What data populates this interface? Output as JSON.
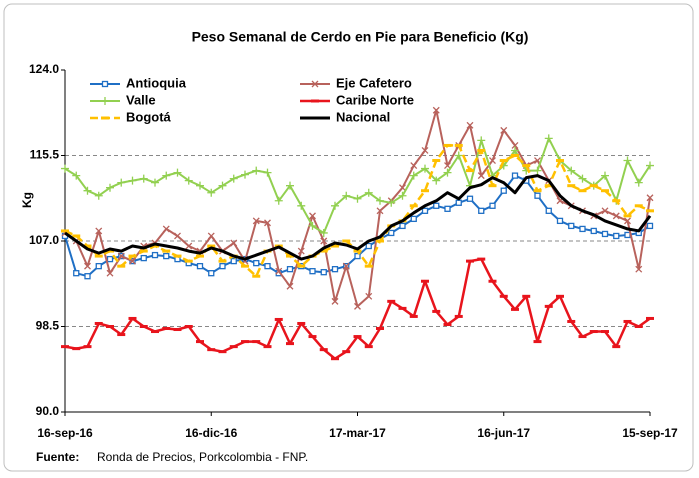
{
  "chart_data": {
    "type": "line",
    "title": "Peso Semanal de Cerdo en Pie para Beneficio (Kg)",
    "y_label": "Kg",
    "source_label": "Fuente:",
    "source": "Ronda de Precios, Porkcolombia  - FNP.",
    "categories": [
      "16-sep-16",
      null,
      null,
      null,
      null,
      null,
      null,
      null,
      null,
      null,
      null,
      null,
      null,
      "16-dic-16",
      null,
      null,
      null,
      null,
      null,
      null,
      null,
      null,
      null,
      null,
      null,
      null,
      "17-mar-17",
      null,
      null,
      null,
      null,
      null,
      null,
      null,
      null,
      null,
      null,
      null,
      null,
      "16-jun-17",
      null,
      null,
      null,
      null,
      null,
      null,
      null,
      null,
      null,
      null,
      null,
      null,
      "15-sep-17"
    ],
    "ylim": [
      90,
      124
    ],
    "yticks": [
      {
        "value": 90,
        "label": "90.0"
      },
      98.5,
      {
        "value": 107,
        "label": "107.0"
      },
      115.5,
      {
        "value": 124,
        "label": "124.0"
      }
    ],
    "grid": true,
    "legend": "top",
    "series": [
      {
        "name": "Antioquia",
        "color": "#1f6fc5",
        "marker": "square",
        "width": 2,
        "values": [
          107.5,
          103.8,
          103.5,
          104.5,
          105.2,
          105.5,
          105,
          105.3,
          105.6,
          105.5,
          105.2,
          104.8,
          104.5,
          103.8,
          104.5,
          105,
          105.2,
          104.8,
          104.5,
          103.8,
          104.2,
          104.5,
          104,
          103.9,
          104.2,
          104.5,
          105.5,
          106.5,
          107.2,
          107.8,
          108.5,
          109.2,
          110,
          110.5,
          110.2,
          110.8,
          111.2,
          110,
          110.5,
          112,
          113.5,
          113,
          111.5,
          110,
          109,
          108.5,
          108.2,
          108,
          107.7,
          107.5,
          107.6,
          107.8,
          108.5
        ]
      },
      {
        "name": "Eje Cafetero",
        "color": "#b8625c",
        "marker": "x",
        "width": 2,
        "values": [
          107.8,
          107,
          104.5,
          108,
          103.8,
          105.5,
          105,
          106.5,
          106.8,
          108.2,
          107.5,
          106.5,
          106,
          107.5,
          106,
          106.8,
          105,
          109,
          108.8,
          104,
          102.5,
          106,
          109.5,
          107,
          101,
          104.5,
          100.5,
          101.5,
          110,
          111,
          112.3,
          114.5,
          116,
          120,
          114.5,
          116.5,
          118.5,
          113.5,
          115,
          118,
          116.5,
          114.5,
          115,
          113,
          111,
          110.5,
          110,
          109.5,
          110,
          109.5,
          109,
          104.2,
          111.3
        ]
      },
      {
        "name": "Valle",
        "color": "#92d050",
        "marker": "plus",
        "width": 2,
        "values": [
          114.2,
          113.5,
          112,
          111.5,
          112.3,
          112.8,
          113,
          113.2,
          112.8,
          113.5,
          113.8,
          113,
          112.5,
          111.8,
          112.5,
          113.2,
          113.6,
          114,
          113.8,
          111,
          112.5,
          110.5,
          108.5,
          107.8,
          110.5,
          111.5,
          111.2,
          111.8,
          111,
          110.8,
          111.5,
          113.5,
          114.2,
          113,
          113.8,
          115.5,
          112.5,
          117,
          113.5,
          114.5,
          116,
          114,
          114,
          117.2,
          115,
          114,
          113.2,
          112.5,
          113.5,
          111,
          115,
          112.8,
          114.5
        ]
      },
      {
        "name": "Caribe Norte",
        "color": "#e8141c",
        "marker": "dash",
        "width": 2.5,
        "values": [
          96.5,
          96.3,
          96.5,
          98.8,
          98.5,
          97.7,
          99.3,
          98.5,
          98,
          98.3,
          98.2,
          98.5,
          97,
          96.2,
          96,
          96.5,
          97,
          97,
          96.5,
          99.2,
          96.8,
          98.8,
          97.5,
          96.2,
          95.3,
          96,
          97.5,
          96.5,
          98.3,
          101,
          100.3,
          99.5,
          103,
          100,
          98.7,
          99.5,
          105,
          105.2,
          103,
          101.5,
          100.2,
          101.5,
          97,
          100.5,
          101.5,
          99,
          97.5,
          98,
          98,
          96.5,
          99,
          98.5,
          99.3
        ]
      },
      {
        "name": "Bogotá",
        "color": "#ffc000",
        "marker": "dash",
        "width": 2.5,
        "dash": true,
        "values": [
          108,
          107.5,
          106.5,
          105.5,
          106,
          104.5,
          105.5,
          106,
          106.5,
          106,
          105.5,
          105,
          105.5,
          106.5,
          105,
          105.5,
          104.5,
          103.5,
          106,
          106.5,
          105.5,
          104.5,
          105.5,
          106,
          106.5,
          107,
          106,
          104.5,
          107,
          108.5,
          109,
          110.5,
          112,
          115,
          116.5,
          116.5,
          114,
          116,
          112.5,
          115,
          115.5,
          114.5,
          112,
          112.5,
          115,
          112.5,
          112,
          112.5,
          112,
          111,
          109.5,
          110.5,
          110
        ]
      },
      {
        "name": "Nacional",
        "color": "#000000",
        "marker": "none",
        "width": 3,
        "values": [
          107.8,
          107,
          106.2,
          105.8,
          106.2,
          106,
          106.5,
          106.3,
          106.7,
          106.5,
          106.3,
          106,
          105.8,
          106.3,
          106,
          105.5,
          105.2,
          105.6,
          106,
          106.4,
          105.8,
          105.2,
          105.5,
          106.3,
          106.8,
          106.6,
          106.2,
          107,
          107.4,
          108.5,
          109,
          109.8,
          110.5,
          111,
          111.8,
          111.2,
          112.3,
          112.6,
          113.3,
          112.8,
          111.8,
          113.3,
          113.5,
          113,
          111.5,
          110.5,
          110,
          109.6,
          109,
          108.6,
          108.2,
          108,
          109.5
        ]
      }
    ]
  }
}
